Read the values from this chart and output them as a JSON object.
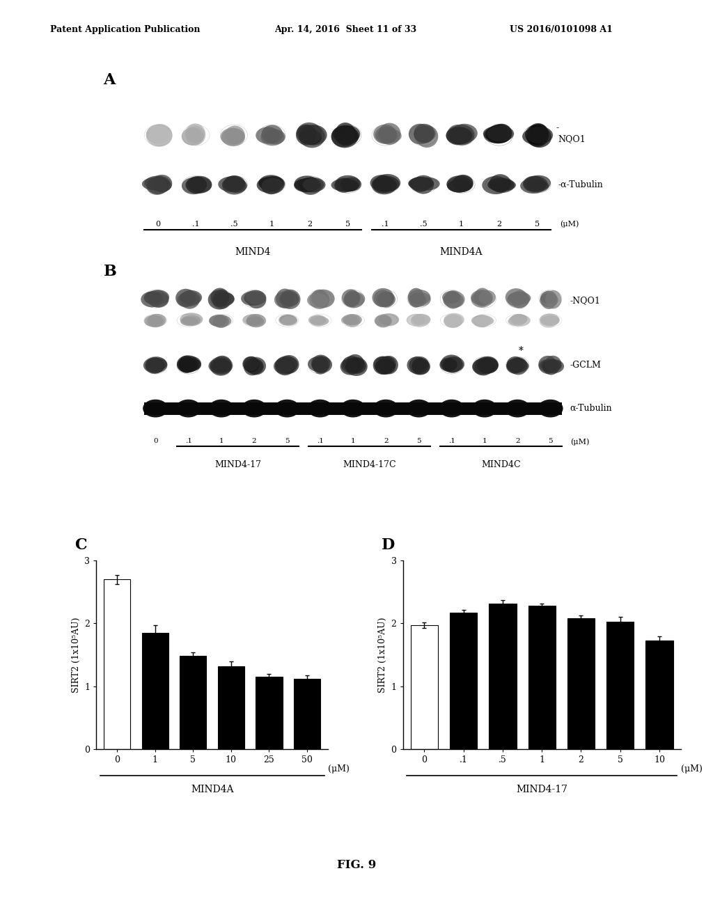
{
  "header_left": "Patent Application Publication",
  "header_mid": "Apr. 14, 2016  Sheet 11 of 33",
  "header_right": "US 2016/0101098 A1",
  "footer": "FIG. 9",
  "panel_A_label": "A",
  "panel_A_xticks": [
    "0",
    ".1",
    ".5",
    "1",
    "2",
    "5",
    ".1",
    ".5",
    "1",
    "2",
    "5"
  ],
  "panel_A_xunit": "(μM)",
  "panel_A_group1": "MIND4",
  "panel_A_group2": "MIND4A",
  "panel_B_label": "B",
  "panel_B_xticks": [
    "0",
    ".1",
    "1",
    "2",
    "5",
    ".1",
    "1",
    "2",
    "5",
    ".1",
    "1",
    "2",
    "5"
  ],
  "panel_B_xunit": "(μM)",
  "panel_B_group1": "MIND4-17",
  "panel_B_group2": "MIND4-17C",
  "panel_B_group3": "MIND4C",
  "panel_C_label": "C",
  "panel_C_ylabel": "SIRT2 (1x10⁵AU)",
  "panel_C_xlabel": "(μM)",
  "panel_C_group_label": "MIND4A",
  "panel_C_xticks": [
    "0",
    "1",
    "5",
    "10",
    "25",
    "50"
  ],
  "panel_C_values": [
    2.7,
    1.85,
    1.48,
    1.32,
    1.15,
    1.12
  ],
  "panel_C_errors": [
    0.07,
    0.12,
    0.06,
    0.08,
    0.05,
    0.05
  ],
  "panel_C_colors": [
    "white",
    "black",
    "black",
    "black",
    "black",
    "black"
  ],
  "panel_C_ylim": [
    0,
    3
  ],
  "panel_C_yticks": [
    0,
    1,
    2,
    3
  ],
  "panel_D_label": "D",
  "panel_D_ylabel": "SIRT2 (1x10⁵AU)",
  "panel_D_xlabel": "(μM)",
  "panel_D_group_label": "MIND4-17",
  "panel_D_xticks": [
    "0",
    ".1",
    ".5",
    "1",
    "2",
    "5",
    "10"
  ],
  "panel_D_values": [
    1.97,
    2.17,
    2.32,
    2.28,
    2.08,
    2.03,
    1.73
  ],
  "panel_D_errors": [
    0.04,
    0.05,
    0.05,
    0.04,
    0.05,
    0.07,
    0.06
  ],
  "panel_D_colors": [
    "white",
    "black",
    "black",
    "black",
    "black",
    "black",
    "black"
  ],
  "panel_D_ylim": [
    0,
    3
  ],
  "panel_D_yticks": [
    0,
    1,
    2,
    3
  ]
}
